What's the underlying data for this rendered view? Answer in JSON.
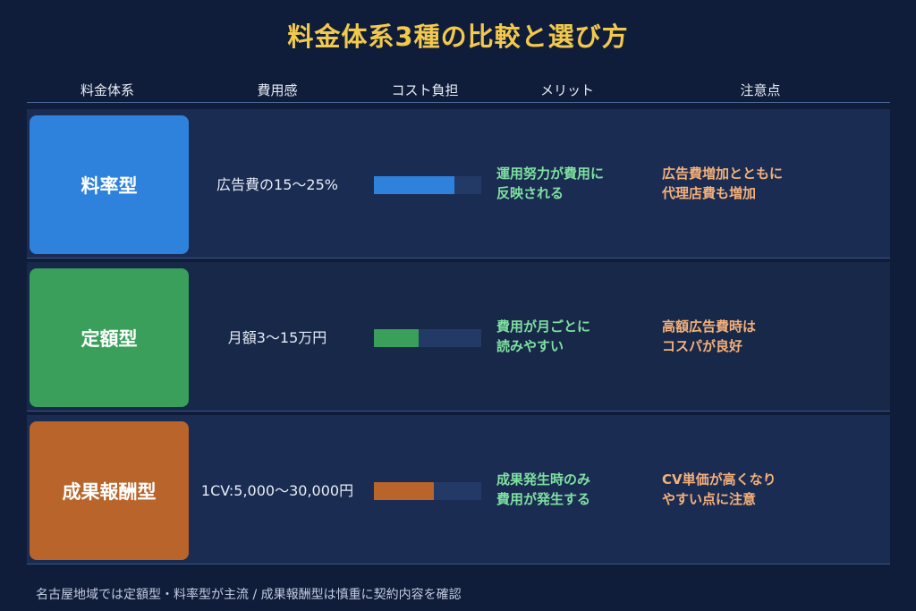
{
  "title": "料金体系3種の比較と選び方",
  "headers": [
    "料金体系",
    "費用感",
    "コスト負担",
    "メリット",
    "注意点"
  ],
  "rows": [
    {
      "type": "料率型",
      "cost": "広告費の15〜25%",
      "cost_level": 0.75,
      "color": "#2f82dc",
      "merit": [
        "運用努力が費用に",
        "反映される"
      ],
      "caution": [
        "広告費増加とともに",
        "代理店費も増加"
      ]
    },
    {
      "type": "定額型",
      "cost": "月額3〜15万円",
      "cost_level": 0.42,
      "color": "#3a9f5a",
      "merit": [
        "費用が月ごとに",
        "読みやすい"
      ],
      "caution": [
        "高額広告費時は",
        "コスパが良好"
      ]
    },
    {
      "type": "成果報酬型",
      "cost": "1CV:5,000〜30,000円",
      "cost_level": 0.56,
      "color": "#b8642a",
      "merit": [
        "成果発生時のみ",
        "費用が発生する"
      ],
      "caution": [
        "CV単価が高くなり",
        "やすい点に注意"
      ]
    }
  ],
  "footer": "名古屋地域では定額型・料率型が主流 / 成果報酬型は慎重に契約内容を確認"
}
